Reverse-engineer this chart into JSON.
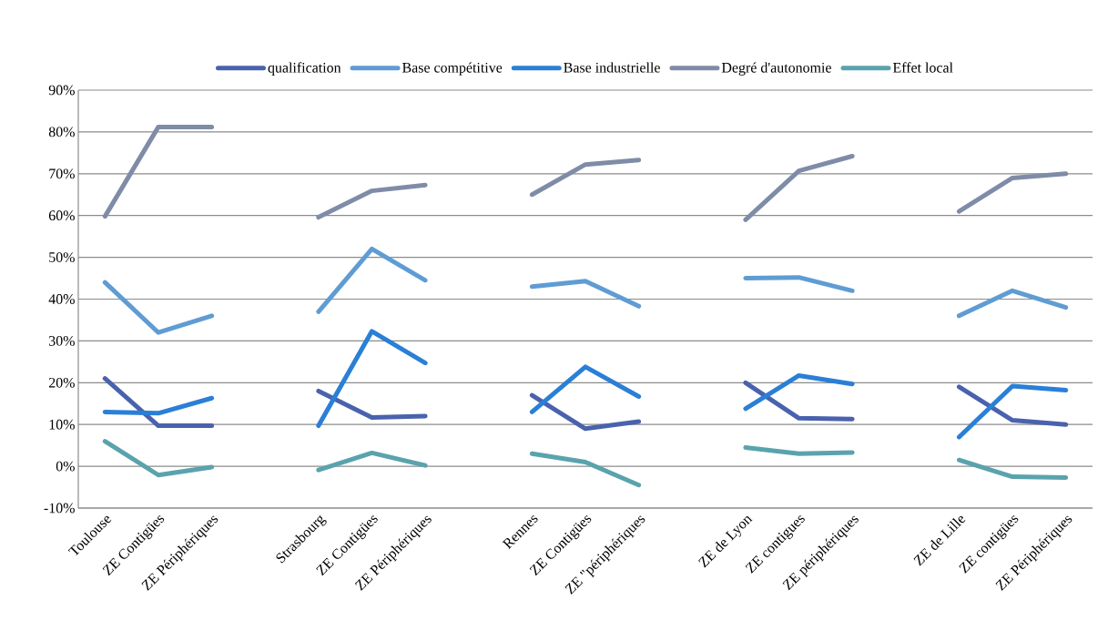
{
  "chart_data": {
    "type": "line",
    "categories": [
      "Toulouse",
      "ZE Contigües",
      "ZE Périphériques",
      null,
      "Strasbourg",
      "ZE Contigües",
      "ZE Périphériques",
      null,
      "Rennes",
      "ZE Contigües",
      "ZE \"périphériques",
      null,
      "ZE de Lyon",
      "ZE contigues",
      "ZE périphériques",
      null,
      "ZE de Lille",
      "ZE contigües",
      "ZE Périphériques"
    ],
    "series": [
      {
        "name": "qualification",
        "color": "#4a62ad",
        "values": [
          21,
          9.7,
          9.7,
          null,
          18,
          11.7,
          12,
          null,
          17,
          9,
          10.7,
          null,
          20,
          11.5,
          11.3,
          null,
          19,
          11,
          10
        ]
      },
      {
        "name": "Base compétitive",
        "color": "#5f9cd3",
        "values": [
          44,
          32,
          36,
          null,
          37,
          52,
          44.5,
          null,
          43,
          44.3,
          38.3,
          null,
          45,
          45.2,
          42,
          null,
          36,
          42,
          38
        ]
      },
      {
        "name": "Base industrielle",
        "color": "#2a7fd6",
        "values": [
          13,
          12.7,
          16.3,
          null,
          9.7,
          32.3,
          24.7,
          null,
          13,
          23.8,
          16.7,
          null,
          13.8,
          21.7,
          19.7,
          null,
          7,
          19.2,
          18.2
        ]
      },
      {
        "name": "Degré d'autonomie",
        "color": "#7f8ca8",
        "values": [
          59.8,
          81.2,
          81.2,
          null,
          59.6,
          65.9,
          67.3,
          null,
          65,
          72.2,
          73.3,
          null,
          59,
          70.7,
          74.2,
          null,
          61,
          69,
          70
        ]
      },
      {
        "name": "Effet local",
        "color": "#5aa3ad",
        "values": [
          6,
          -2.1,
          -0.2,
          null,
          -0.9,
          3.2,
          0.2,
          null,
          3,
          1,
          -4.5,
          null,
          4.5,
          3,
          3.3,
          null,
          1.5,
          -2.5,
          -2.7
        ]
      }
    ],
    "ylim": [
      -10,
      90
    ],
    "yticks": [
      {
        "value": -10,
        "label": "-10%"
      },
      {
        "value": 0,
        "label": "0%"
      },
      {
        "value": 10,
        "label": "10%"
      },
      {
        "value": 20,
        "label": "20%"
      },
      {
        "value": 30,
        "label": "30%"
      },
      {
        "value": 40,
        "label": "40%"
      },
      {
        "value": 50,
        "label": "50%"
      },
      {
        "value": 60,
        "label": "60%"
      },
      {
        "value": 70,
        "label": "70%"
      },
      {
        "value": 80,
        "label": "80%"
      },
      {
        "value": 90,
        "label": "90%"
      }
    ],
    "grid": "y",
    "legend": "top",
    "marker": "none",
    "line_style": "solid"
  }
}
